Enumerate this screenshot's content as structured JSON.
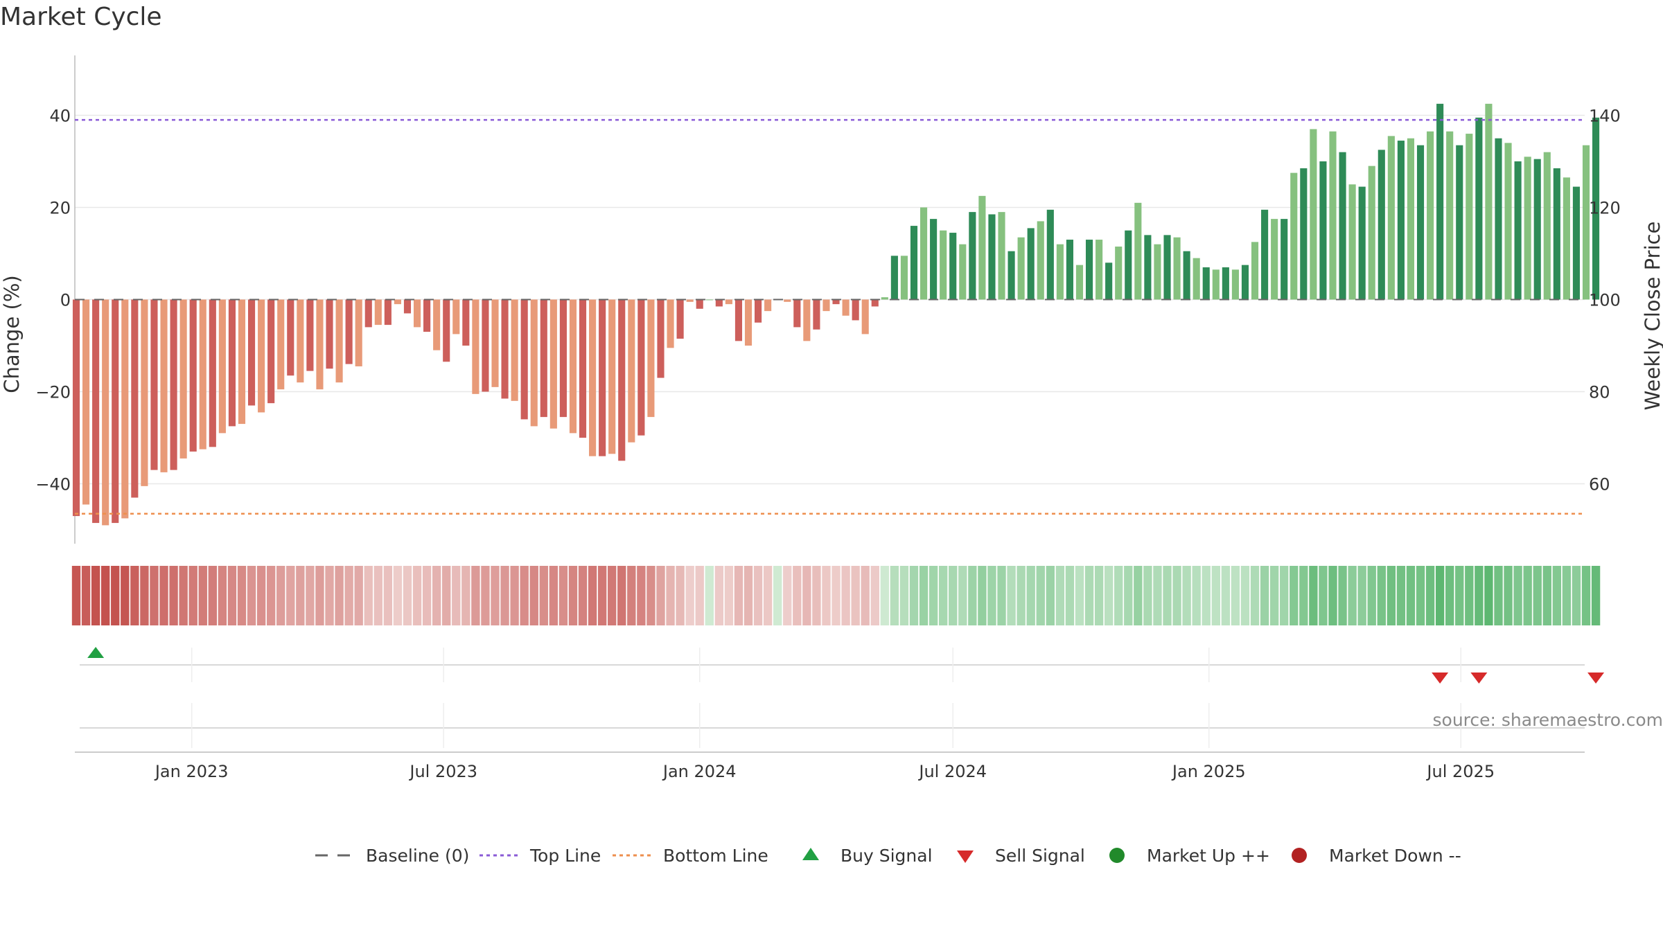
{
  "chart_data": {
    "type": "bar",
    "title": "Market Cycle",
    "ylabel_left": "Change (%)",
    "ylabel_right": "Weekly Close Price",
    "ylim_left": [
      -53,
      53
    ],
    "ylim_right": [
      47,
      153
    ],
    "left_ticks": [
      {
        "value": 40,
        "label": "40"
      },
      {
        "value": 20,
        "label": "20"
      },
      {
        "value": 0,
        "label": "0"
      },
      {
        "value": -20,
        "label": "−20"
      },
      {
        "value": -40,
        "label": "−40"
      }
    ],
    "right_ticks": [
      {
        "value": 140,
        "label": "140"
      },
      {
        "value": 120,
        "label": "120"
      },
      {
        "value": 100,
        "label": "100"
      },
      {
        "value": 80,
        "label": "80"
      },
      {
        "value": 60,
        "label": "60"
      }
    ],
    "date_start": "2022-10-10",
    "x_ticks": [
      {
        "date": "2023-01-01",
        "label": "Jan 2023"
      },
      {
        "date": "2023-07-01",
        "label": "Jul 2023"
      },
      {
        "date": "2024-01-01",
        "label": "Jan 2024"
      },
      {
        "date": "2024-07-01",
        "label": "Jul 2024"
      },
      {
        "date": "2025-01-01",
        "label": "Jan 2025"
      },
      {
        "date": "2025-07-01",
        "label": "Jul 2025"
      }
    ],
    "x_range": [
      "2022-10-09",
      "2025-09-28"
    ],
    "top_line": 39,
    "bottom_line": -46.5,
    "baseline": 0,
    "weekly_change_pct": [
      -47,
      -44.5,
      -48.5,
      -49,
      -48.5,
      -47.5,
      -43,
      -40.5,
      -37,
      -37.5,
      -37,
      -34.5,
      -33,
      -32.5,
      -32,
      -29,
      -27.5,
      -27,
      -23,
      -24.5,
      -22.5,
      -19.5,
      -16.5,
      -18,
      -15.5,
      -19.5,
      -15,
      -18,
      -14,
      -14.5,
      -6,
      -5.5,
      -5.5,
      -1,
      -3,
      -6,
      -7,
      -11,
      -13.5,
      -7.5,
      -10,
      -20.5,
      -20,
      -19,
      -21.5,
      -22,
      -26,
      -27.5,
      -25.5,
      -28,
      -25.5,
      -29,
      -30,
      -34,
      -34,
      -33.5,
      -35,
      -31,
      -29.5,
      -25.5,
      -17,
      -10.5,
      -8.5,
      -0.5,
      -2,
      0,
      -1.5,
      -1,
      -9,
      -10,
      -5,
      -2.5,
      0,
      -0.5,
      -6,
      -9,
      -6.5,
      -2.5,
      -1,
      -3.5,
      -4.5,
      -7.5,
      -1.5,
      0.5,
      9.5,
      9.5,
      16,
      20,
      17.5,
      15,
      14.5,
      12,
      19,
      22.5,
      18.5,
      19,
      10.5,
      13.5,
      15.5,
      17,
      19.5,
      12,
      13,
      7.5,
      13,
      13,
      8,
      11.5,
      15,
      21,
      14,
      12,
      14,
      13.5,
      10.5,
      9,
      7,
      6.5,
      7,
      6.5,
      7.5,
      12.5,
      19.5,
      17.5,
      17.5,
      27.5,
      28.5,
      37,
      30,
      36.5,
      32,
      25,
      24.5,
      29,
      32.5,
      35.5,
      34.5,
      35,
      33.5,
      36.5,
      42.5,
      36.5,
      33.5,
      36,
      39.5,
      42.5,
      35,
      34,
      30,
      31,
      30.5,
      32,
      28.5,
      26.5,
      24.5,
      33.5,
      39.5
    ],
    "signals": {
      "buy": [
        2
      ],
      "sell": [
        140,
        144,
        156
      ]
    },
    "legend": [
      {
        "key": "baseline",
        "label": "Baseline (0)",
        "color": "#666666",
        "style": "dash"
      },
      {
        "key": "top",
        "label": "Top Line",
        "color": "#8a5bd6",
        "style": "dot"
      },
      {
        "key": "bottom",
        "label": "Bottom Line",
        "color": "#ee8f4e",
        "style": "dot"
      },
      {
        "key": "buy",
        "label": "Buy Signal",
        "color": "#21a043",
        "style": "triangle-up"
      },
      {
        "key": "sell",
        "label": "Sell Signal",
        "color": "#d62a2a",
        "style": "triangle-down"
      },
      {
        "key": "up",
        "label": "Market Up ++",
        "color": "#218a2b",
        "style": "circle"
      },
      {
        "key": "down",
        "label": "Market Down --",
        "color": "#b22222",
        "style": "circle"
      }
    ],
    "colors": {
      "neg_dark": "#cd5f5b",
      "neg_light": "#e89a78",
      "pos_dark": "#2e8b57",
      "pos_light": "#86c17f",
      "grid": "#e8e8e8",
      "top_line": "#8a5bd6",
      "bottom_line": "#ee8f4e"
    },
    "source": "source: sharemaestro.com"
  }
}
